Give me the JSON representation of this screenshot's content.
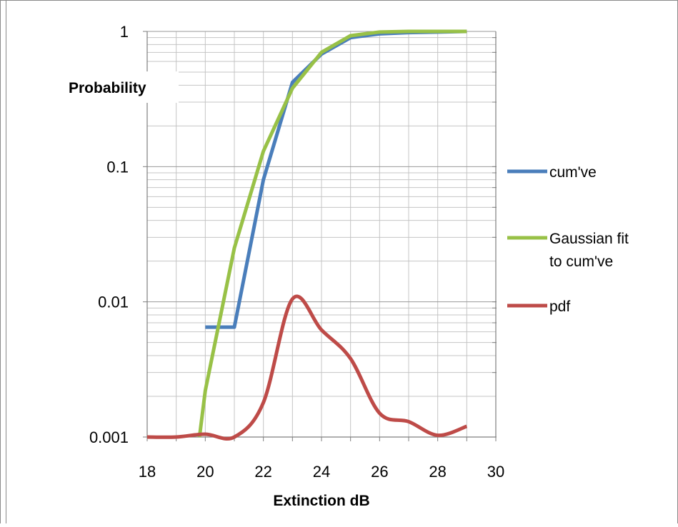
{
  "chart_data": {
    "type": "line",
    "xlabel": "Extinction dB",
    "ylabel": "Probability",
    "xlim": [
      18,
      30
    ],
    "ylim": [
      0.001,
      1
    ],
    "y_scale": "log",
    "grid": true,
    "legend_position": "right",
    "x_ticks": [
      "18",
      "20",
      "22",
      "24",
      "26",
      "28",
      "30"
    ],
    "y_ticks": [
      "0.001",
      "0.01",
      "0.1",
      "1"
    ],
    "series": [
      {
        "name": "cum've",
        "color": "#4a7ebb",
        "smooth": false,
        "x": [
          20,
          21,
          22,
          23,
          24,
          25,
          26,
          27,
          28,
          29
        ],
        "y": [
          0.0065,
          0.0065,
          0.08,
          0.42,
          0.68,
          0.9,
          0.96,
          0.98,
          0.99,
          1.0
        ]
      },
      {
        "name": "Gaussian fit\nto cum've",
        "color": "#98c147",
        "smooth": false,
        "x": [
          19.8,
          20,
          21,
          22,
          23,
          24,
          25,
          26,
          27,
          28,
          29
        ],
        "y": [
          0.001,
          0.0022,
          0.025,
          0.13,
          0.38,
          0.7,
          0.93,
          0.99,
          1.0,
          1.0,
          1.0
        ]
      },
      {
        "name": "pdf",
        "color": "#be4b48",
        "smooth": true,
        "x": [
          18,
          19,
          20,
          21,
          22,
          23,
          24,
          25,
          26,
          27,
          28,
          29
        ],
        "y": [
          0.001,
          0.001,
          0.00105,
          0.001,
          0.0018,
          0.0105,
          0.0062,
          0.0038,
          0.0015,
          0.0013,
          0.00103,
          0.0012
        ]
      }
    ]
  },
  "legend": {
    "items": [
      {
        "lines": [
          "cum've"
        ]
      },
      {
        "lines": [
          "Gaussian fit",
          "to cum've"
        ]
      },
      {
        "lines": [
          "pdf"
        ]
      }
    ]
  }
}
